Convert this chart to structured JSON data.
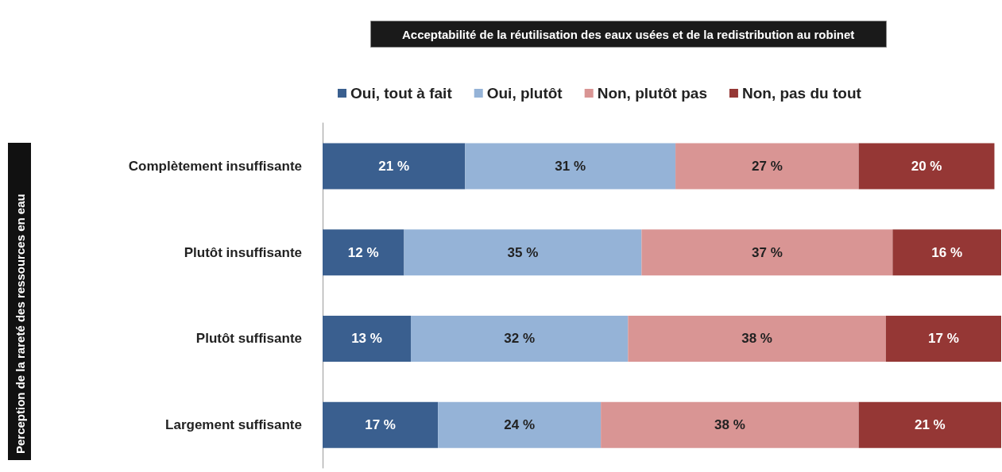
{
  "chart_data": {
    "type": "bar",
    "orientation": "horizontal",
    "stacked": true,
    "title": "Acceptabilité de la réutilisation des eaux usées et de la redistribution au robinet",
    "annotations": [
      "Perception de la rareté des ressources en eau"
    ],
    "categories": [
      "Complètement insuffisante",
      "Plutôt insuffisante",
      "Plutôt suffisante",
      "Largement suffisante"
    ],
    "series": [
      {
        "name": "Oui, tout à fait",
        "color": "#3a5f8f",
        "values": [
          21,
          12,
          13,
          17
        ],
        "value_labels": [
          "21 %",
          "12 %",
          "13 %",
          "17 %"
        ]
      },
      {
        "name": "Oui, plutôt",
        "color": "#95b3d7",
        "values": [
          31,
          35,
          32,
          24
        ],
        "value_labels": [
          "31 %",
          "35 %",
          "32 %",
          "24 %"
        ]
      },
      {
        "name": "Non, plutôt pas",
        "color": "#d99594",
        "values": [
          27,
          37,
          38,
          38
        ],
        "value_labels": [
          "27 %",
          "37 %",
          "38 %",
          "38 %"
        ]
      },
      {
        "name": "Non, pas du tout",
        "color": "#953735",
        "values": [
          20,
          16,
          17,
          21
        ],
        "value_labels": [
          "20 %",
          "16 %",
          "17 %",
          "21 %"
        ]
      }
    ],
    "legend": "top"
  }
}
